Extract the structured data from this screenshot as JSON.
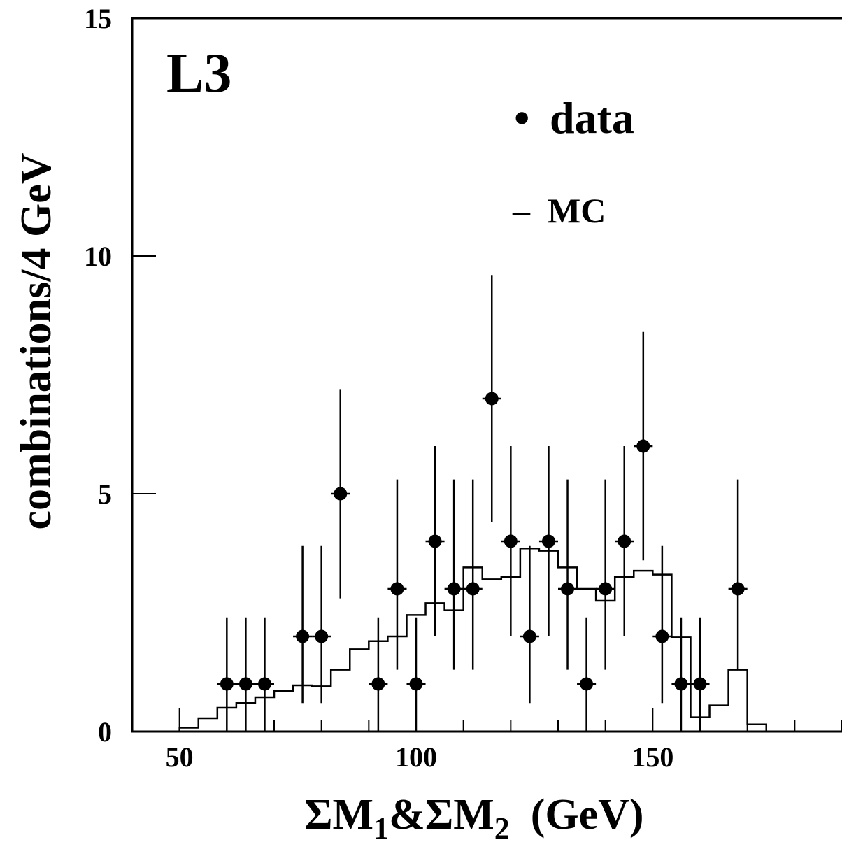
{
  "chart_data": {
    "type": "scatter",
    "experiment_label": "L3",
    "xlabel": "ΣM1&ΣM2 (GeV)",
    "xlabel_parts": {
      "sigma1": "ΣM",
      "sub1": "1",
      "amp": "&ΣM",
      "sub2": "2",
      "unit": "(GeV)"
    },
    "ylabel": "combinations/4 GeV",
    "xlim": [
      40,
      190
    ],
    "ylim": [
      0,
      15
    ],
    "x_ticks": [
      50,
      100,
      150
    ],
    "y_ticks": [
      0,
      5,
      10,
      15
    ],
    "grid": false,
    "legend_position": "top-center",
    "legend": [
      {
        "name": "data",
        "marker": "•"
      },
      {
        "name": "MC",
        "marker": "–"
      }
    ],
    "series": [
      {
        "name": "data",
        "x": [
          60,
          64,
          68,
          76,
          80,
          84,
          92,
          96,
          100,
          104,
          108,
          112,
          116,
          120,
          124,
          128,
          132,
          136,
          140,
          144,
          148,
          152,
          156,
          160,
          168
        ],
        "y": [
          1,
          1,
          1,
          2,
          2,
          5,
          1,
          3,
          1,
          4,
          3,
          3,
          7,
          4,
          2,
          4,
          3,
          1,
          3,
          4,
          6,
          2,
          1,
          1,
          3
        ],
        "err_low": [
          1,
          1,
          1,
          1.4,
          1.4,
          2.2,
          1,
          1.7,
          1,
          2.0,
          1.7,
          1.7,
          2.6,
          2.0,
          1.4,
          2.0,
          1.7,
          1,
          1.7,
          2.0,
          2.4,
          1.4,
          1,
          1,
          1.7
        ],
        "err_high": [
          1.4,
          1.4,
          1.4,
          1.9,
          1.9,
          2.2,
          1.4,
          2.3,
          1.4,
          2.0,
          2.3,
          2.3,
          2.6,
          2.0,
          1.9,
          2.0,
          2.3,
          1.4,
          2.3,
          2.0,
          2.4,
          1.9,
          1.4,
          1.4,
          2.3
        ]
      },
      {
        "name": "MC",
        "type": "step",
        "bin_edges": [
          50,
          54,
          58,
          62,
          66,
          70,
          74,
          78,
          82,
          86,
          90,
          94,
          98,
          102,
          106,
          110,
          114,
          118,
          122,
          126,
          130,
          134,
          138,
          142,
          146,
          150,
          154,
          158,
          162,
          166,
          170,
          174
        ],
        "values": [
          0.08,
          0.28,
          0.5,
          0.6,
          0.72,
          0.85,
          0.97,
          0.95,
          1.3,
          1.73,
          1.9,
          2.0,
          2.45,
          2.7,
          2.55,
          3.45,
          3.2,
          3.25,
          3.85,
          3.8,
          3.45,
          3.0,
          2.75,
          3.25,
          3.38,
          3.3,
          1.98,
          0.3,
          0.55,
          1.3,
          0.15
        ]
      }
    ]
  }
}
